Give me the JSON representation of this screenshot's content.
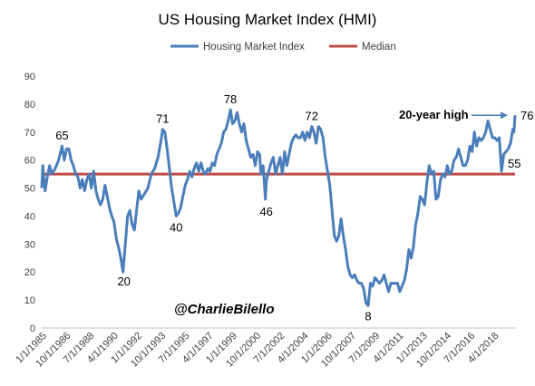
{
  "colors": {
    "series": "#4a7ebb",
    "median": "#be4b48",
    "axis": "#bfbfbf",
    "text": "#404040"
  },
  "chart_data": {
    "type": "line",
    "title": "US Housing Market Index (HMI)",
    "xlabel": "",
    "ylabel": "",
    "ylim": [
      0,
      90
    ],
    "y_ticks": [
      0,
      10,
      20,
      30,
      40,
      50,
      60,
      70,
      80,
      90
    ],
    "grid": false,
    "legend_position": "top",
    "x_tick_labels": [
      "1/1/1985",
      "10/1/1986",
      "7/1/1988",
      "4/1/1990",
      "1/1/1992",
      "10/1/1993",
      "7/1/1995",
      "4/1/1997",
      "1/1/1999",
      "10/1/2000",
      "7/1/2002",
      "4/1/2004",
      "1/1/2006",
      "10/1/2007",
      "7/1/2009",
      "4/1/2011",
      "1/1/2013",
      "10/1/2014",
      "7/1/2016",
      "4/1/2018"
    ],
    "x_range": [
      "1985-01",
      "2019-12"
    ],
    "series": [
      {
        "name": "Housing Market Index",
        "color": "#4a7ebb",
        "points": [
          [
            "1985-01",
            50
          ],
          [
            "1985-02",
            58
          ],
          [
            "1985-04",
            49
          ],
          [
            "1985-06",
            54
          ],
          [
            "1985-08",
            58
          ],
          [
            "1985-10",
            55
          ],
          [
            "1986-01",
            57
          ],
          [
            "1986-04",
            60
          ],
          [
            "1986-07",
            65
          ],
          [
            "1986-09",
            60
          ],
          [
            "1986-11",
            64
          ],
          [
            "1987-01",
            64
          ],
          [
            "1987-03",
            60
          ],
          [
            "1987-05",
            58
          ],
          [
            "1987-07",
            55
          ],
          [
            "1987-09",
            54
          ],
          [
            "1987-11",
            50
          ],
          [
            "1988-01",
            53
          ],
          [
            "1988-03",
            49
          ],
          [
            "1988-05",
            53
          ],
          [
            "1988-07",
            55
          ],
          [
            "1988-09",
            50
          ],
          [
            "1988-11",
            56
          ],
          [
            "1989-01",
            49
          ],
          [
            "1989-03",
            46
          ],
          [
            "1989-05",
            44
          ],
          [
            "1989-07",
            46
          ],
          [
            "1989-09",
            51
          ],
          [
            "1989-11",
            47
          ],
          [
            "1990-01",
            43
          ],
          [
            "1990-03",
            40
          ],
          [
            "1990-05",
            38
          ],
          [
            "1990-07",
            32
          ],
          [
            "1990-09",
            29
          ],
          [
            "1990-11",
            25
          ],
          [
            "1991-01",
            20
          ],
          [
            "1991-03",
            30
          ],
          [
            "1991-05",
            40
          ],
          [
            "1991-07",
            42
          ],
          [
            "1991-09",
            37
          ],
          [
            "1991-11",
            35
          ],
          [
            "1992-01",
            42
          ],
          [
            "1992-03",
            49
          ],
          [
            "1992-05",
            46
          ],
          [
            "1992-08",
            48
          ],
          [
            "1992-11",
            50
          ],
          [
            "1993-02",
            55
          ],
          [
            "1993-05",
            57
          ],
          [
            "1993-08",
            61
          ],
          [
            "1993-11",
            68
          ],
          [
            "1993-12",
            71
          ],
          [
            "1994-02",
            70
          ],
          [
            "1994-04",
            64
          ],
          [
            "1994-06",
            57
          ],
          [
            "1994-08",
            50
          ],
          [
            "1994-10",
            45
          ],
          [
            "1994-12",
            40
          ],
          [
            "1995-02",
            41
          ],
          [
            "1995-04",
            43
          ],
          [
            "1995-06",
            47
          ],
          [
            "1995-08",
            51
          ],
          [
            "1995-10",
            53
          ],
          [
            "1995-12",
            56
          ],
          [
            "1996-02",
            54
          ],
          [
            "1996-04",
            57
          ],
          [
            "1996-06",
            59
          ],
          [
            "1996-08",
            56
          ],
          [
            "1996-10",
            59
          ],
          [
            "1996-12",
            56
          ],
          [
            "1997-02",
            55
          ],
          [
            "1997-04",
            57
          ],
          [
            "1997-06",
            56
          ],
          [
            "1997-08",
            59
          ],
          [
            "1997-10",
            58
          ],
          [
            "1997-12",
            62
          ],
          [
            "1998-02",
            64
          ],
          [
            "1998-04",
            66
          ],
          [
            "1998-06",
            70
          ],
          [
            "1998-08",
            71
          ],
          [
            "1998-10",
            74
          ],
          [
            "1998-12",
            78
          ],
          [
            "1999-02",
            73
          ],
          [
            "1999-04",
            74
          ],
          [
            "1999-06",
            77
          ],
          [
            "1999-08",
            73
          ],
          [
            "1999-10",
            70
          ],
          [
            "1999-12",
            73
          ],
          [
            "2000-02",
            67
          ],
          [
            "2000-04",
            64
          ],
          [
            "2000-06",
            61
          ],
          [
            "2000-08",
            62
          ],
          [
            "2000-10",
            58
          ],
          [
            "2000-12",
            63
          ],
          [
            "2001-02",
            62
          ],
          [
            "2001-03",
            55
          ],
          [
            "2001-05",
            58
          ],
          [
            "2001-07",
            46
          ],
          [
            "2001-08",
            53
          ],
          [
            "2001-10",
            56
          ],
          [
            "2001-12",
            59
          ],
          [
            "2002-02",
            61
          ],
          [
            "2002-04",
            55
          ],
          [
            "2002-06",
            58
          ],
          [
            "2002-08",
            61
          ],
          [
            "2002-10",
            55
          ],
          [
            "2002-12",
            63
          ],
          [
            "2003-02",
            58
          ],
          [
            "2003-04",
            62
          ],
          [
            "2003-06",
            66
          ],
          [
            "2003-08",
            68
          ],
          [
            "2003-10",
            69
          ],
          [
            "2003-12",
            68
          ],
          [
            "2004-02",
            68
          ],
          [
            "2004-04",
            70
          ],
          [
            "2004-06",
            67
          ],
          [
            "2004-08",
            70
          ],
          [
            "2004-10",
            68
          ],
          [
            "2004-12",
            72
          ],
          [
            "2005-02",
            70
          ],
          [
            "2005-04",
            66
          ],
          [
            "2005-06",
            72
          ],
          [
            "2005-08",
            71
          ],
          [
            "2005-10",
            68
          ],
          [
            "2005-12",
            61
          ],
          [
            "2006-02",
            56
          ],
          [
            "2006-04",
            51
          ],
          [
            "2006-06",
            42
          ],
          [
            "2006-08",
            33
          ],
          [
            "2006-10",
            31
          ],
          [
            "2006-12",
            33
          ],
          [
            "2007-02",
            39
          ],
          [
            "2007-04",
            33
          ],
          [
            "2007-06",
            28
          ],
          [
            "2007-08",
            22
          ],
          [
            "2007-10",
            19
          ],
          [
            "2007-12",
            18
          ],
          [
            "2008-02",
            19
          ],
          [
            "2008-04",
            17
          ],
          [
            "2008-06",
            16
          ],
          [
            "2008-08",
            16
          ],
          [
            "2008-10",
            14
          ],
          [
            "2008-12",
            9
          ],
          [
            "2009-02",
            8
          ],
          [
            "2009-04",
            16
          ],
          [
            "2009-06",
            15
          ],
          [
            "2009-08",
            18
          ],
          [
            "2009-10",
            17
          ],
          [
            "2009-12",
            16
          ],
          [
            "2010-02",
            17
          ],
          [
            "2010-04",
            19
          ],
          [
            "2010-06",
            16
          ],
          [
            "2010-08",
            13
          ],
          [
            "2010-10",
            16
          ],
          [
            "2010-12",
            16
          ],
          [
            "2011-02",
            16
          ],
          [
            "2011-04",
            16
          ],
          [
            "2011-06",
            13
          ],
          [
            "2011-08",
            15
          ],
          [
            "2011-10",
            17
          ],
          [
            "2011-12",
            21
          ],
          [
            "2012-02",
            28
          ],
          [
            "2012-04",
            25
          ],
          [
            "2012-06",
            29
          ],
          [
            "2012-08",
            37
          ],
          [
            "2012-10",
            41
          ],
          [
            "2012-12",
            47
          ],
          [
            "2013-02",
            46
          ],
          [
            "2013-04",
            44
          ],
          [
            "2013-06",
            52
          ],
          [
            "2013-08",
            58
          ],
          [
            "2013-10",
            55
          ],
          [
            "2013-12",
            56
          ],
          [
            "2014-02",
            46
          ],
          [
            "2014-04",
            47
          ],
          [
            "2014-06",
            53
          ],
          [
            "2014-08",
            55
          ],
          [
            "2014-10",
            54
          ],
          [
            "2014-12",
            58
          ],
          [
            "2015-02",
            55
          ],
          [
            "2015-04",
            56
          ],
          [
            "2015-06",
            60
          ],
          [
            "2015-08",
            61
          ],
          [
            "2015-10",
            64
          ],
          [
            "2015-12",
            61
          ],
          [
            "2016-02",
            58
          ],
          [
            "2016-04",
            58
          ],
          [
            "2016-06",
            60
          ],
          [
            "2016-08",
            65
          ],
          [
            "2016-10",
            63
          ],
          [
            "2016-12",
            70
          ],
          [
            "2017-02",
            65
          ],
          [
            "2017-04",
            68
          ],
          [
            "2017-06",
            67
          ],
          [
            "2017-08",
            68
          ],
          [
            "2017-10",
            70
          ],
          [
            "2017-12",
            74
          ],
          [
            "2018-02",
            71
          ],
          [
            "2018-04",
            68
          ],
          [
            "2018-06",
            68
          ],
          [
            "2018-08",
            67
          ],
          [
            "2018-10",
            68
          ],
          [
            "2018-12",
            56
          ],
          [
            "2019-02",
            62
          ],
          [
            "2019-04",
            63
          ],
          [
            "2019-06",
            64
          ],
          [
            "2019-08",
            66
          ],
          [
            "2019-10",
            71
          ],
          [
            "2019-11",
            70
          ],
          [
            "2019-12",
            76
          ]
        ]
      },
      {
        "name": "Median",
        "color": "#be4b48",
        "value": 55
      }
    ],
    "annotations": [
      {
        "text": "65",
        "x": "1986-07",
        "y": 65
      },
      {
        "text": "20",
        "x": "1991-01",
        "y": 20
      },
      {
        "text": "71",
        "x": "1993-12",
        "y": 71
      },
      {
        "text": "40",
        "x": "1994-12",
        "y": 40
      },
      {
        "text": "78",
        "x": "1998-12",
        "y": 78
      },
      {
        "text": "46",
        "x": "2001-07",
        "y": 46
      },
      {
        "text": "72",
        "x": "2004-12",
        "y": 72
      },
      {
        "text": "8",
        "x": "2009-02",
        "y": 8
      },
      {
        "text": "55",
        "x": "2019-12",
        "y": 55
      },
      {
        "text": "76",
        "x": "2019-12",
        "y": 76
      }
    ],
    "callout": "20-year high",
    "watermark": "@CharlieBilello"
  }
}
